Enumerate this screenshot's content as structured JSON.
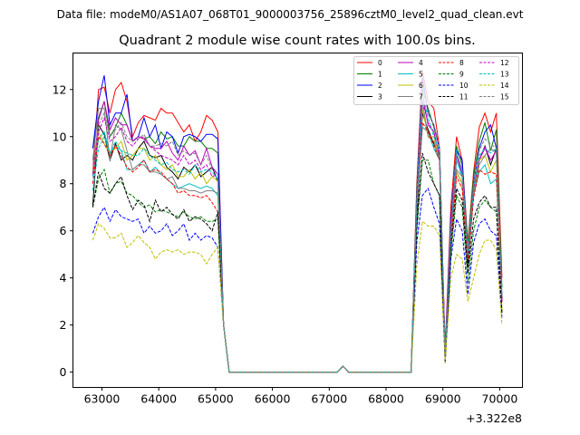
{
  "chart_data": {
    "type": "line",
    "suptitle": "Data file: modeM0/AS1A07_068T01_9000003756_25896cztM0_level2_quad_clean.evt",
    "title": "Quadrant 2 module wise count rates with 100.0s bins.",
    "xlabel": "",
    "ylabel": "",
    "x_offset_label": "+3.322e8",
    "xlim": [
      62490,
      70400
    ],
    "ylim": [
      -0.65,
      13.55
    ],
    "xticks": [
      63000,
      64000,
      65000,
      66000,
      67000,
      68000,
      69000,
      70000
    ],
    "xtick_labels": [
      "63000",
      "64000",
      "65000",
      "66000",
      "67000",
      "68000",
      "69000",
      "70000"
    ],
    "yticks": [
      0,
      2,
      4,
      6,
      8,
      10,
      12
    ],
    "ytick_labels": [
      "0",
      "2",
      "4",
      "6",
      "8",
      "10",
      "12"
    ],
    "grid": false,
    "legend_placement": "top-right",
    "x_start": 62840,
    "x_step": 100,
    "n_points": 73,
    "drop_value": 2.0,
    "bump": {
      "x": 67240,
      "value": 0.25
    },
    "series": [
      {
        "name": "0",
        "color": "#ff0000",
        "dashed": false,
        "seg1": [
          8.5,
          12.0,
          12.1,
          11.0,
          12.0,
          12.3,
          11.5,
          10.0,
          10.6,
          10.9,
          10.8,
          10.7,
          11.2,
          11.0,
          11.0,
          10.6,
          10.2,
          10.5,
          9.8,
          10.2,
          10.9,
          10.7,
          10.2
        ],
        "seg2": [
          8,
          12.8,
          11.5,
          11.2,
          9.5,
          1,
          7,
          10,
          9,
          5.5,
          8.5,
          10.4,
          11,
          10.2,
          11,
          4
        ]
      },
      {
        "name": "1",
        "color": "#008000",
        "dashed": false,
        "seg1": [
          9.5,
          10.8,
          11.5,
          10,
          10.4,
          11,
          10.5,
          9.8,
          10,
          9.9,
          10,
          9.7,
          10.2,
          9.9,
          10,
          9.6,
          9.6,
          10,
          9.8,
          9.8,
          9.5,
          9.5,
          9.3
        ],
        "seg2": [
          7.8,
          12.0,
          11.2,
          10.4,
          9.5,
          0.8,
          6.3,
          9.6,
          8.8,
          5.4,
          8.3,
          9.8,
          10.6,
          9.4,
          10.3,
          3.6
        ]
      },
      {
        "name": "2",
        "color": "#0000ff",
        "dashed": false,
        "seg1": [
          9.5,
          11.5,
          12.6,
          10.5,
          11,
          11,
          11.8,
          9.8,
          10,
          10.8,
          10,
          10.5,
          9.5,
          10.2,
          10,
          9.3,
          10.0,
          10.1,
          10.0,
          9.8,
          10.1,
          10.1,
          9.9
        ],
        "seg2": [
          7.5,
          12.5,
          11,
          10.5,
          9.5,
          0.8,
          6.5,
          9.4,
          9,
          5,
          8,
          9.5,
          10.2,
          10.5,
          9.5,
          3
        ]
      },
      {
        "name": "3",
        "color": "#000000",
        "dashed": false,
        "seg1": [
          7.1,
          10.5,
          10.1,
          9.0,
          9.7,
          9.0,
          9.2,
          9.0,
          9.5,
          9.8,
          9.2,
          9.1,
          9.2,
          8.7,
          8.5,
          8.2,
          8.7,
          8.5,
          8.8,
          8.3,
          8.5,
          8.7,
          8.1
        ],
        "seg2": [
          6.5,
          11,
          10.3,
          9.7,
          9.2,
          0.5,
          5.5,
          8.5,
          8,
          4.5,
          7.5,
          9,
          9.6,
          8.8,
          9.5,
          3
        ]
      },
      {
        "name": "4",
        "color": "#bf00bf",
        "dashed": false,
        "seg1": [
          8.3,
          10.7,
          11.5,
          10.3,
          10.8,
          10.5,
          10.5,
          9.8,
          10,
          9.9,
          9.6,
          9.5,
          9.5,
          9.8,
          9.3,
          9.0,
          9.6,
          9.2,
          9.4,
          8.8,
          9.5,
          8.7,
          8.4
        ],
        "seg2": [
          7,
          11.8,
          10.5,
          10.2,
          9.2,
          0.8,
          6,
          9.2,
          8.4,
          5,
          7.8,
          9,
          9.5,
          9,
          9.4,
          3
        ]
      },
      {
        "name": "5",
        "color": "#00bfbf",
        "dashed": false,
        "seg1": [
          8.3,
          9.9,
          10.2,
          9.3,
          9.6,
          9.4,
          8.6,
          8.6,
          8.8,
          9.0,
          8.5,
          8.7,
          8.4,
          8.2,
          8.0,
          7.8,
          7.9,
          8.0,
          7.9,
          7.8,
          7.9,
          7.8,
          7.5
        ],
        "seg2": [
          7,
          10.4,
          10.2,
          9.5,
          9,
          0.5,
          6,
          9,
          8.3,
          5,
          7.5,
          8.5,
          8.8,
          8,
          8.2,
          3.2
        ]
      },
      {
        "name": "6",
        "color": "#bfbf00",
        "dashed": false,
        "seg1": [
          8.5,
          10.2,
          9.7,
          9.3,
          9.5,
          9.8,
          9.0,
          9.2,
          9.5,
          9.5,
          9.0,
          9.2,
          8.8,
          8.6,
          8.8,
          8.3,
          8.3,
          8.6,
          8.2,
          8.5,
          8.0,
          8.3,
          8.1
        ],
        "seg2": [
          7,
          11.2,
          10,
          10,
          9,
          0.5,
          5.5,
          8.5,
          8,
          4.8,
          7.5,
          9,
          9.2,
          8.5,
          9,
          2.6
        ]
      },
      {
        "name": "7",
        "color": "#808080",
        "dashed": false,
        "seg1": [
          9,
          11.2,
          11.2,
          9.0,
          10.5,
          10.3,
          9.4,
          8.6,
          8.8,
          8.8,
          8.5,
          8.5,
          8.4,
          8.2,
          8.3,
          7.8,
          7.8,
          7.7,
          7.7,
          7.6,
          7.7,
          7.7,
          7.6
        ],
        "seg2": [
          7,
          11.5,
          10,
          9.8,
          9,
          0.6,
          5.6,
          8.6,
          8.3,
          4.8,
          7.5,
          8.8,
          9.2,
          9.5,
          9.3,
          3
        ]
      },
      {
        "name": "8",
        "color": "#ff0000",
        "dashed": true,
        "seg1": [
          8.0,
          10.0,
          9.7,
          9.2,
          9.6,
          9.2,
          8.7,
          8.5,
          8.7,
          9.0,
          8.5,
          8.6,
          8.5,
          8.2,
          8.0,
          7.6,
          7.7,
          7.5,
          7.5,
          7.4,
          7.5,
          7.2,
          6.8
        ],
        "seg2": [
          7,
          10.6,
          10.2,
          9.6,
          9,
          0.5,
          5.6,
          8.3,
          7.8,
          4.8,
          7.4,
          8.6,
          8.4,
          8.5,
          8.4,
          3
        ]
      },
      {
        "name": "9",
        "color": "#008000",
        "dashed": true,
        "seg1": [
          7.0,
          8.2,
          8.6,
          7.6,
          8.0,
          8.1,
          7.6,
          7.5,
          7.2,
          7.0,
          7.1,
          6.8,
          6.9,
          6.8,
          6.7,
          6.6,
          6.8,
          6.6,
          6.5,
          6.6,
          6.4,
          6.4,
          6.5
        ],
        "seg2": [
          6,
          9,
          9,
          8,
          7.5,
          0.4,
          5,
          7.5,
          7,
          3.8,
          6,
          7,
          7.3,
          7,
          6.8,
          2.5
        ]
      },
      {
        "name": "10",
        "color": "#0000ff",
        "dashed": true,
        "seg1": [
          5.9,
          6.6,
          7.0,
          6.4,
          6.9,
          6.6,
          6.5,
          6.4,
          6.5,
          5.9,
          6.2,
          5.9,
          6.0,
          6.3,
          5.8,
          6.0,
          6.3,
          5.6,
          5.9,
          5.6,
          5.8,
          5.7,
          5.3
        ],
        "seg2": [
          5.5,
          7.5,
          7.8,
          7,
          6.3,
          0.4,
          4.8,
          6.5,
          6,
          3.3,
          5.5,
          6.3,
          6.5,
          6,
          5.8,
          2.3
        ]
      },
      {
        "name": "11",
        "color": "#000000",
        "dashed": true,
        "seg1": [
          7.0,
          8.5,
          7.8,
          7.6,
          8.0,
          8.3,
          7.5,
          6.9,
          7.3,
          7.1,
          6.4,
          7.3,
          6.8,
          7.0,
          6.7,
          6.5,
          6.9,
          6.4,
          6.6,
          6.5,
          6.3,
          6.0,
          6.8
        ],
        "seg2": [
          6.2,
          9.3,
          8.5,
          8,
          7.5,
          0.4,
          5.3,
          7.8,
          7.3,
          4.2,
          6.5,
          7.2,
          7.5,
          7,
          7,
          2.5
        ]
      },
      {
        "name": "12",
        "color": "#bf00bf",
        "dashed": true,
        "seg1": [
          8.4,
          10.2,
          10.8,
          9.8,
          10.0,
          10.4,
          9.8,
          9.6,
          9.9,
          10,
          9.6,
          9.4,
          9.2,
          9.1,
          9.0,
          8.8,
          9.2,
          8.8,
          9.0,
          8.6,
          8.8,
          8.3,
          8.4
        ],
        "seg2": [
          7,
          11.5,
          10.6,
          10.2,
          9.2,
          0.7,
          6,
          9.2,
          8.4,
          5,
          7.8,
          9,
          9.6,
          9,
          9.4,
          3
        ]
      },
      {
        "name": "13",
        "color": "#00bfbf",
        "dashed": true,
        "seg1": [
          7.7,
          9.5,
          10.0,
          9.3,
          9.8,
          9.4,
          9.3,
          9.2,
          9.2,
          9.5,
          9.2,
          9.0,
          8.8,
          8.9,
          8.6,
          8.5,
          8.6,
          8.4,
          8.8,
          8.5,
          8.6,
          8.5,
          8.2
        ],
        "seg2": [
          7,
          11.8,
          10.8,
          10,
          9.4,
          0.6,
          6,
          9.4,
          8.5,
          5,
          7.8,
          9.2,
          9.5,
          9.3,
          9.5,
          3.3
        ]
      },
      {
        "name": "14",
        "color": "#bfbf00",
        "dashed": true,
        "seg1": [
          5.6,
          6.3,
          6.1,
          5.7,
          5.7,
          5.9,
          5.3,
          5.5,
          5.8,
          5.5,
          5.3,
          4.8,
          5.1,
          5.2,
          5.1,
          5.2,
          5.0,
          5.1,
          5.1,
          5.0,
          4.6,
          5.0,
          5.3
        ],
        "seg2": [
          4.5,
          6.4,
          6.2,
          6.2,
          5.8,
          0.4,
          4,
          5,
          4.8,
          3,
          4,
          5,
          5.6,
          5.6,
          5.2,
          2
        ]
      },
      {
        "name": "15",
        "color": "#808080",
        "dashed": true,
        "seg1": [
          8.5,
          10.5,
          11.0,
          10.0,
          10.3,
          10.6,
          10.0,
          9.8,
          9.9,
          10.1,
          9.6,
          9.6,
          9.7,
          9.6,
          9.8,
          9.2,
          9.4,
          9.2,
          9.3,
          8.8,
          9.2,
          8.6,
          8.4
        ],
        "seg2": [
          7.5,
          12.2,
          11,
          10.5,
          9.5,
          0.7,
          6.2,
          9.3,
          8.6,
          5.2,
          8,
          9.4,
          9.9,
          9.7,
          9.5,
          3.2
        ]
      }
    ]
  }
}
